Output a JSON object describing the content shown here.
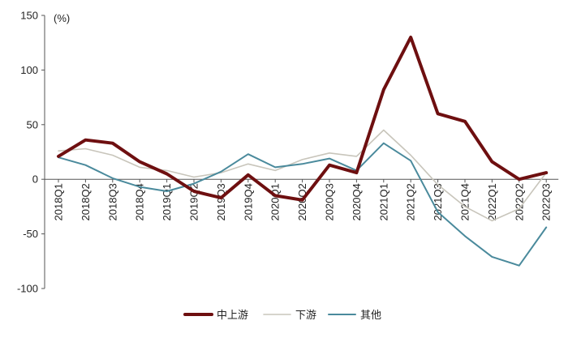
{
  "chart_data": {
    "type": "line",
    "unit_label": "(%)",
    "categories": [
      "2018Q1",
      "2018Q2",
      "2018Q3",
      "2018Q4",
      "2019Q1",
      "2019Q2",
      "2019Q3",
      "2019Q4",
      "2020Q1",
      "2020Q2",
      "2020Q3",
      "2020Q4",
      "2021Q1",
      "2021Q2",
      "2021Q3",
      "2021Q4",
      "2022Q1",
      "2022Q2",
      "2022Q3"
    ],
    "ylim": [
      -100,
      150
    ],
    "yticks": [
      150,
      100,
      50,
      0,
      -50,
      -100
    ],
    "series": [
      {
        "name": "中上游",
        "color": "#6e0f10",
        "width": 4,
        "values": [
          21,
          36,
          33,
          16,
          5,
          -11,
          -17,
          4,
          -15,
          -19,
          13,
          6,
          82,
          130,
          60,
          53,
          16,
          0,
          6
        ]
      },
      {
        "name": "下游",
        "color": "#c8c5bb",
        "width": 1.6,
        "values": [
          26,
          28,
          22,
          11,
          8,
          2,
          6,
          14,
          8,
          18,
          24,
          21,
          45,
          22,
          -5,
          -25,
          -38,
          -27,
          6
        ]
      },
      {
        "name": "其他",
        "color": "#4a8a9c",
        "width": 2,
        "values": [
          20,
          13,
          1,
          -7,
          -11,
          -4,
          7,
          23,
          11,
          14,
          19,
          8,
          33,
          17,
          -30,
          -52,
          -71,
          -79,
          -44
        ]
      }
    ],
    "legend_position": "bottom-center"
  }
}
